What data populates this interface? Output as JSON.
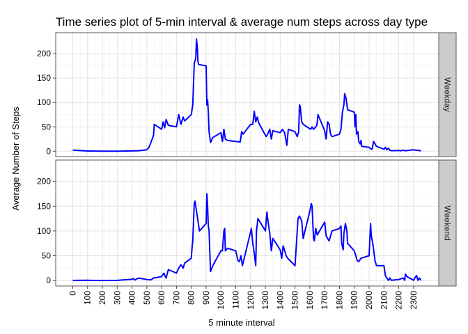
{
  "chart_data": {
    "type": "line",
    "title": "Time series plot of 5-min interval & average num steps across day type",
    "xlabel": "5 minute interval",
    "ylabel": "Average Number of Steps",
    "xlim": [
      -115,
      2470
    ],
    "ylim": [
      -11,
      243
    ],
    "x_ticks": [
      0,
      100,
      200,
      300,
      400,
      500,
      600,
      700,
      800,
      900,
      1000,
      1100,
      1200,
      1300,
      1400,
      1500,
      1600,
      1700,
      1800,
      1900,
      2000,
      2100,
      2200,
      2300
    ],
    "y_ticks": [
      0,
      50,
      100,
      150,
      200
    ],
    "line_color": "#0000ff",
    "grid": true,
    "facets": [
      {
        "label": "Weekday",
        "points": [
          [
            0,
            2.3
          ],
          [
            100,
            0.4
          ],
          [
            200,
            0.2
          ],
          [
            300,
            0.1
          ],
          [
            400,
            0.5
          ],
          [
            445,
            1.0
          ],
          [
            500,
            3.0
          ],
          [
            515,
            8.0
          ],
          [
            530,
            20
          ],
          [
            545,
            32
          ],
          [
            550,
            55
          ],
          [
            600,
            45
          ],
          [
            610,
            60
          ],
          [
            620,
            48
          ],
          [
            630,
            65
          ],
          [
            645,
            53
          ],
          [
            700,
            50
          ],
          [
            715,
            75
          ],
          [
            730,
            55
          ],
          [
            745,
            70
          ],
          [
            755,
            62
          ],
          [
            800,
            75
          ],
          [
            810,
            95
          ],
          [
            820,
            180
          ],
          [
            830,
            190
          ],
          [
            835,
            230
          ],
          [
            840,
            215
          ],
          [
            845,
            184
          ],
          [
            850,
            178
          ],
          [
            900,
            175
          ],
          [
            905,
            95
          ],
          [
            910,
            105
          ],
          [
            915,
            80
          ],
          [
            920,
            40
          ],
          [
            930,
            18
          ],
          [
            945,
            28
          ],
          [
            1000,
            38
          ],
          [
            1010,
            20
          ],
          [
            1020,
            45
          ],
          [
            1030,
            25
          ],
          [
            1045,
            22
          ],
          [
            1100,
            20
          ],
          [
            1130,
            19
          ],
          [
            1140,
            40
          ],
          [
            1150,
            35
          ],
          [
            1200,
            55
          ],
          [
            1215,
            55
          ],
          [
            1225,
            82
          ],
          [
            1235,
            60
          ],
          [
            1245,
            70
          ],
          [
            1255,
            58
          ],
          [
            1305,
            30
          ],
          [
            1315,
            35
          ],
          [
            1330,
            45
          ],
          [
            1340,
            25
          ],
          [
            1350,
            42
          ],
          [
            1400,
            38
          ],
          [
            1415,
            45
          ],
          [
            1430,
            38
          ],
          [
            1445,
            12
          ],
          [
            1455,
            45
          ],
          [
            1500,
            40
          ],
          [
            1515,
            30
          ],
          [
            1525,
            40
          ],
          [
            1530,
            95
          ],
          [
            1535,
            92
          ],
          [
            1545,
            60
          ],
          [
            1555,
            55
          ],
          [
            1605,
            45
          ],
          [
            1615,
            50
          ],
          [
            1625,
            45
          ],
          [
            1635,
            48
          ],
          [
            1645,
            52
          ],
          [
            1650,
            58
          ],
          [
            1655,
            75
          ],
          [
            1700,
            42
          ],
          [
            1710,
            25
          ],
          [
            1720,
            60
          ],
          [
            1730,
            55
          ],
          [
            1740,
            35
          ],
          [
            1750,
            30
          ],
          [
            1800,
            35
          ],
          [
            1810,
            45
          ],
          [
            1820,
            80
          ],
          [
            1830,
            95
          ],
          [
            1835,
            118
          ],
          [
            1845,
            108
          ],
          [
            1855,
            85
          ],
          [
            1900,
            80
          ],
          [
            1905,
            50
          ],
          [
            1910,
            75
          ],
          [
            1915,
            35
          ],
          [
            1925,
            40
          ],
          [
            1930,
            20
          ],
          [
            1940,
            15
          ],
          [
            1945,
            22
          ],
          [
            1950,
            10
          ],
          [
            2000,
            8
          ],
          [
            2010,
            5
          ],
          [
            2020,
            4
          ],
          [
            2030,
            20
          ],
          [
            2040,
            15
          ],
          [
            2050,
            10
          ],
          [
            2100,
            4
          ],
          [
            2110,
            8
          ],
          [
            2120,
            3
          ],
          [
            2130,
            6
          ],
          [
            2140,
            2
          ],
          [
            2150,
            1
          ],
          [
            2200,
            1.5
          ],
          [
            2215,
            1
          ],
          [
            2230,
            2
          ],
          [
            2245,
            1
          ],
          [
            2300,
            3
          ],
          [
            2315,
            2
          ],
          [
            2330,
            2
          ],
          [
            2350,
            0.5
          ]
        ]
      },
      {
        "label": "Weekend",
        "points": [
          [
            0,
            0.2
          ],
          [
            100,
            0.5
          ],
          [
            200,
            0.1
          ],
          [
            300,
            0.3
          ],
          [
            400,
            2.5
          ],
          [
            410,
            4.0
          ],
          [
            420,
            1.0
          ],
          [
            430,
            3.0
          ],
          [
            445,
            5.0
          ],
          [
            500,
            2.0
          ],
          [
            530,
            1.5
          ],
          [
            545,
            5.0
          ],
          [
            600,
            8.0
          ],
          [
            615,
            15
          ],
          [
            630,
            5.0
          ],
          [
            645,
            22
          ],
          [
            700,
            15
          ],
          [
            715,
            25
          ],
          [
            730,
            32
          ],
          [
            745,
            25
          ],
          [
            755,
            35
          ],
          [
            800,
            45
          ],
          [
            805,
            65
          ],
          [
            810,
            80
          ],
          [
            820,
            155
          ],
          [
            825,
            160
          ],
          [
            835,
            140
          ],
          [
            845,
            120
          ],
          [
            855,
            100
          ],
          [
            900,
            115
          ],
          [
            905,
            175
          ],
          [
            910,
            150
          ],
          [
            915,
            110
          ],
          [
            920,
            100
          ],
          [
            930,
            18
          ],
          [
            945,
            30
          ],
          [
            1000,
            60
          ],
          [
            1010,
            60
          ],
          [
            1020,
            100
          ],
          [
            1025,
            105
          ],
          [
            1030,
            60
          ],
          [
            1045,
            65
          ],
          [
            1100,
            60
          ],
          [
            1115,
            40
          ],
          [
            1125,
            38
          ],
          [
            1135,
            50
          ],
          [
            1145,
            30
          ],
          [
            1200,
            98
          ],
          [
            1205,
            105
          ],
          [
            1215,
            75
          ],
          [
            1225,
            55
          ],
          [
            1235,
            30
          ],
          [
            1240,
            100
          ],
          [
            1250,
            125
          ],
          [
            1300,
            100
          ],
          [
            1310,
            138
          ],
          [
            1320,
            115
          ],
          [
            1330,
            95
          ],
          [
            1340,
            60
          ],
          [
            1350,
            85
          ],
          [
            1400,
            62
          ],
          [
            1410,
            45
          ],
          [
            1420,
            70
          ],
          [
            1440,
            50
          ],
          [
            1450,
            45
          ],
          [
            1500,
            30
          ],
          [
            1510,
            75
          ],
          [
            1520,
            125
          ],
          [
            1530,
            130
          ],
          [
            1545,
            120
          ],
          [
            1555,
            85
          ],
          [
            1600,
            140
          ],
          [
            1610,
            155
          ],
          [
            1615,
            150
          ],
          [
            1625,
            85
          ],
          [
            1630,
            80
          ],
          [
            1640,
            105
          ],
          [
            1650,
            92
          ],
          [
            1700,
            118
          ],
          [
            1710,
            90
          ],
          [
            1720,
            85
          ],
          [
            1730,
            80
          ],
          [
            1740,
            90
          ],
          [
            1750,
            100
          ],
          [
            1800,
            105
          ],
          [
            1810,
            110
          ],
          [
            1815,
            75
          ],
          [
            1825,
            62
          ],
          [
            1830,
            95
          ],
          [
            1840,
            115
          ],
          [
            1850,
            100
          ],
          [
            1855,
            75
          ],
          [
            1900,
            60
          ],
          [
            1910,
            50
          ],
          [
            1920,
            40
          ],
          [
            1930,
            38
          ],
          [
            1945,
            45
          ],
          [
            2000,
            50
          ],
          [
            2010,
            115
          ],
          [
            2015,
            90
          ],
          [
            2025,
            75
          ],
          [
            2035,
            52
          ],
          [
            2040,
            40
          ],
          [
            2050,
            30
          ],
          [
            2100,
            30
          ],
          [
            2110,
            10
          ],
          [
            2120,
            5
          ],
          [
            2130,
            0.5
          ],
          [
            2140,
            5
          ],
          [
            2150,
            0.5
          ],
          [
            2200,
            2.0
          ],
          [
            2230,
            5.0
          ],
          [
            2240,
            0.5
          ],
          [
            2245,
            13
          ],
          [
            2255,
            8
          ],
          [
            2300,
            0.5
          ],
          [
            2310,
            6
          ],
          [
            2320,
            10
          ],
          [
            2330,
            0.5
          ],
          [
            2340,
            5
          ],
          [
            2350,
            0.5
          ]
        ]
      }
    ]
  }
}
